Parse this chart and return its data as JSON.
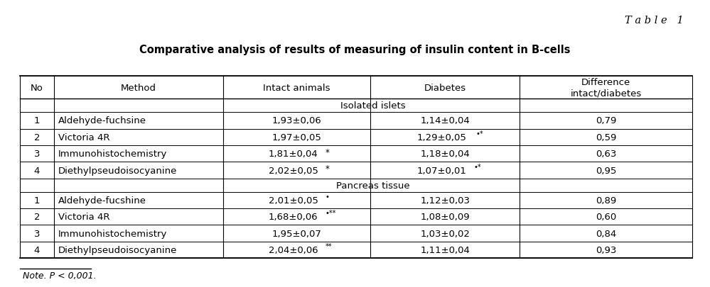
{
  "table_label": "T a b l e   1",
  "title": "Comparative analysis of results of measuring of insulin content in B-cells",
  "note": "Note. P < 0,001.",
  "col_headers": [
    "No",
    "Method",
    "Intact animals",
    "Diabetes",
    "Difference\nintact/diabetes"
  ],
  "section1_label": "Isolated islets",
  "section2_label": "Pancreas tissue",
  "bg_color": "#ffffff",
  "text_color": "#000000"
}
